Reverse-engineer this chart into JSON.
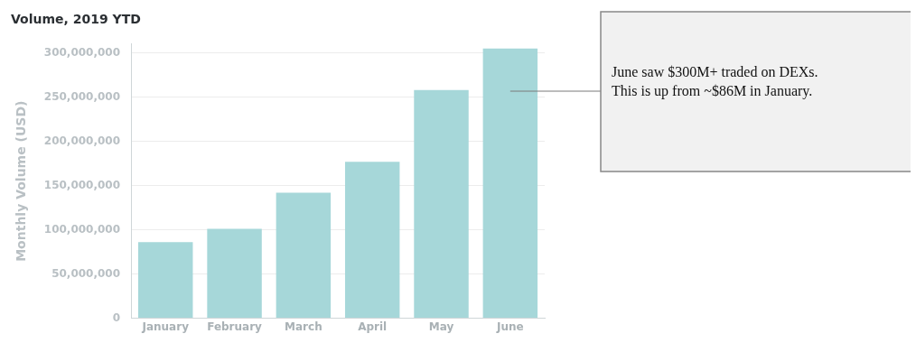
{
  "chart_data": {
    "type": "bar",
    "title": "Volume, 2019 YTD",
    "ylabel": "Monthly Volume (USD)",
    "categories": [
      "January",
      "February",
      "March",
      "April",
      "May",
      "June"
    ],
    "values": [
      86000000,
      101000000,
      142000000,
      177000000,
      258000000,
      305000000
    ],
    "color": "#a6d7d9",
    "ylim": [
      0,
      310000000
    ],
    "yticks": [
      0,
      {
        "value": 50000000,
        "label": "50,000,000"
      },
      {
        "value": 100000000,
        "label": "100,000,000"
      },
      {
        "value": 150000000,
        "label": "150,000,000"
      },
      {
        "value": 200000000,
        "label": "200,000,000"
      },
      {
        "value": 250000000,
        "label": "250,000,000"
      },
      {
        "value": 300000000,
        "label": "300,000,000"
      }
    ],
    "grid": "y",
    "annotations": [
      "June saw $300M+ traded on DEXs.\nThis is up from ~$86M in January."
    ]
  }
}
